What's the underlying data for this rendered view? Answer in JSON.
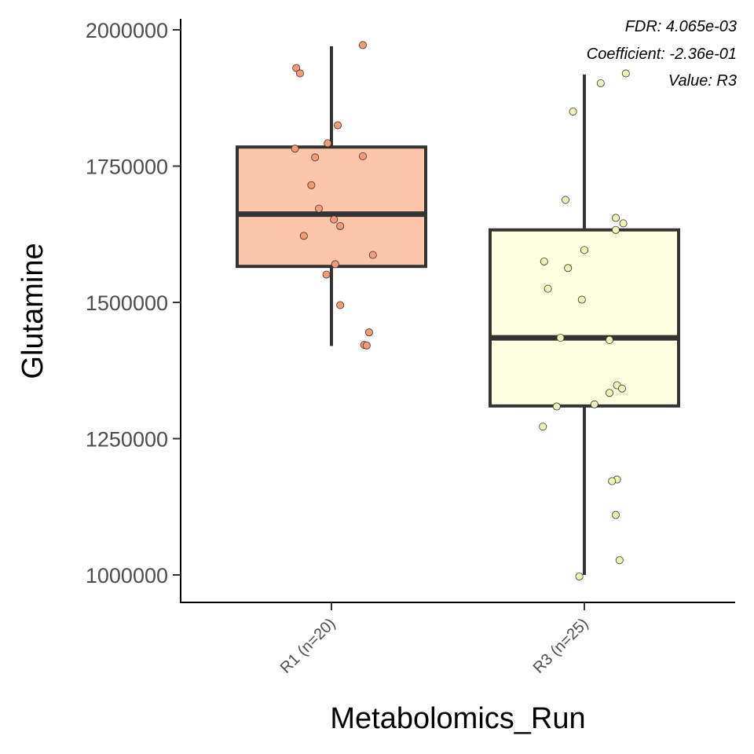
{
  "chart_data": {
    "type": "boxplot",
    "xlabel": "Metabolomics_Run",
    "ylabel": "Glutamine",
    "ylim": [
      950000,
      2025000
    ],
    "yticks": [
      1000000,
      1250000,
      1500000,
      1750000,
      2000000
    ],
    "ytick_labels": [
      "1000000",
      "1250000",
      "1500000",
      "1750000",
      "2000000"
    ],
    "annotations": [
      "FDR: 4.065e-03",
      "Coefficient: -2.36e-01",
      "Value: R3"
    ],
    "grid": false,
    "legend": "none",
    "groups": [
      {
        "label": "R1 (n=20)",
        "fill": "#fdc5a9",
        "point_color": "#f49a75",
        "whisker_low": 1420000,
        "q1": 1566000,
        "median": 1662000,
        "q3": 1785000,
        "whisker_high": 1970000,
        "points": [
          {
            "j": -0.28,
            "v": 1930000
          },
          {
            "j": -0.25,
            "v": 1920000
          },
          {
            "j": 0.25,
            "v": 1972000
          },
          {
            "j": 0.05,
            "v": 1825000
          },
          {
            "j": -0.03,
            "v": 1792000
          },
          {
            "j": -0.29,
            "v": 1782000
          },
          {
            "j": -0.13,
            "v": 1766000
          },
          {
            "j": 0.25,
            "v": 1768000
          },
          {
            "j": -0.16,
            "v": 1715000
          },
          {
            "j": -0.1,
            "v": 1672000
          },
          {
            "j": 0.02,
            "v": 1652000
          },
          {
            "j": 0.07,
            "v": 1640000
          },
          {
            "j": -0.22,
            "v": 1622000
          },
          {
            "j": 0.33,
            "v": 1587000
          },
          {
            "j": 0.03,
            "v": 1570000
          },
          {
            "j": -0.04,
            "v": 1551000
          },
          {
            "j": 0.07,
            "v": 1495000
          },
          {
            "j": 0.3,
            "v": 1445000
          },
          {
            "j": 0.26,
            "v": 1422000
          },
          {
            "j": 0.28,
            "v": 1421000
          }
        ]
      },
      {
        "label": "R3 (n=25)",
        "fill": "#fefee0",
        "point_color": "#f3f3b7",
        "whisker_low": 1000000,
        "q1": 1310000,
        "median": 1435000,
        "q3": 1633000,
        "whisker_high": 1918000,
        "points": [
          {
            "j": 0.33,
            "v": 1920000
          },
          {
            "j": 0.13,
            "v": 1902000
          },
          {
            "j": -0.09,
            "v": 1850000
          },
          {
            "j": -0.15,
            "v": 1688000
          },
          {
            "j": 0.25,
            "v": 1655000
          },
          {
            "j": 0.31,
            "v": 1645000
          },
          {
            "j": 0.25,
            "v": 1633000
          },
          {
            "j": 0.0,
            "v": 1596000
          },
          {
            "j": -0.32,
            "v": 1575000
          },
          {
            "j": -0.13,
            "v": 1563000
          },
          {
            "j": -0.29,
            "v": 1525000
          },
          {
            "j": -0.02,
            "v": 1505000
          },
          {
            "j": -0.19,
            "v": 1435000
          },
          {
            "j": 0.2,
            "v": 1431000
          },
          {
            "j": 0.26,
            "v": 1348000
          },
          {
            "j": 0.3,
            "v": 1342000
          },
          {
            "j": 0.2,
            "v": 1334000
          },
          {
            "j": 0.08,
            "v": 1313000
          },
          {
            "j": -0.22,
            "v": 1309000
          },
          {
            "j": -0.33,
            "v": 1272000
          },
          {
            "j": 0.26,
            "v": 1175000
          },
          {
            "j": 0.22,
            "v": 1172000
          },
          {
            "j": 0.25,
            "v": 1110000
          },
          {
            "j": 0.28,
            "v": 1027000
          },
          {
            "j": -0.04,
            "v": 997000
          }
        ]
      }
    ]
  }
}
